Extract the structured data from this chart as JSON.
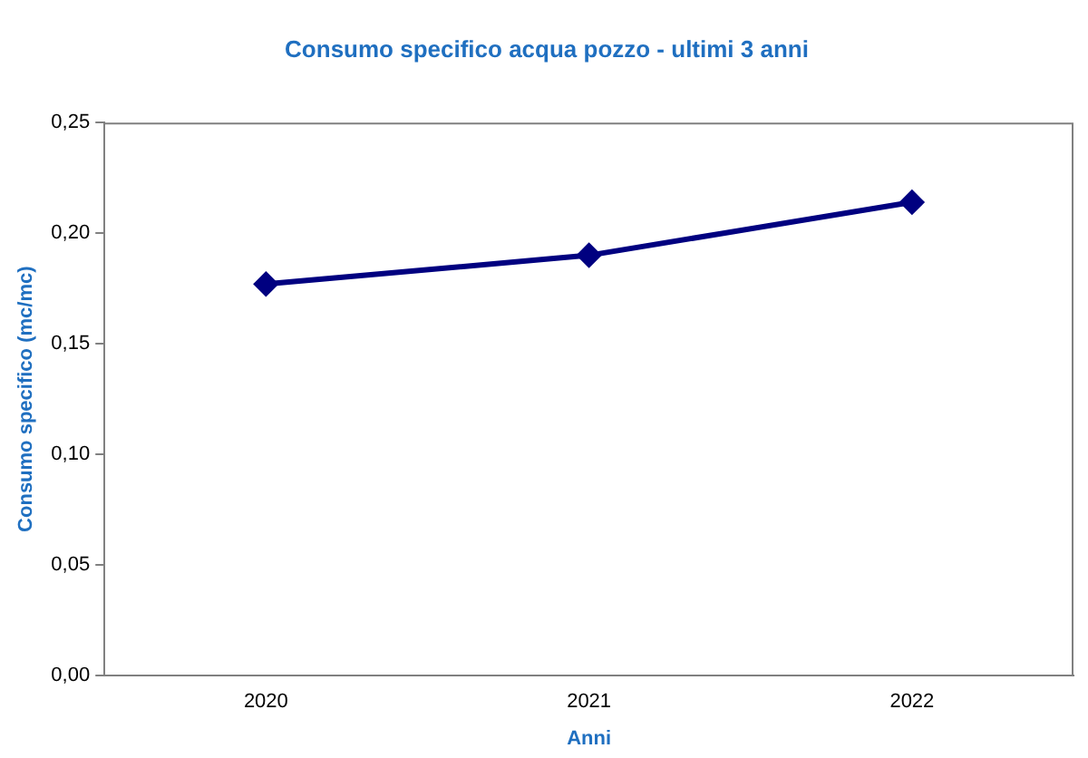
{
  "chart_data": {
    "type": "line",
    "title": "Consumo specifico acqua pozzo - ultimi 3 anni",
    "xlabel": "Anni",
    "ylabel": "Consumo specifico (mc/mc)",
    "categories": [
      "2020",
      "2021",
      "2022"
    ],
    "series": [
      {
        "color": "#000080",
        "values": [
          0.177,
          0.19,
          0.214
        ]
      }
    ],
    "ylim": [
      0,
      0.25
    ],
    "yticks": [
      {
        "value": 0,
        "label": "0,00"
      },
      {
        "value": 0.05,
        "label": "0,05"
      },
      {
        "value": 0.1,
        "label": "0,10"
      },
      {
        "value": 0.15,
        "label": "0,15"
      },
      {
        "value": 0.2,
        "label": "0,20"
      },
      {
        "value": 0.25,
        "label": "0,25"
      }
    ],
    "grid": false,
    "legend": false,
    "marker": "diamond",
    "line_style": "solid"
  }
}
